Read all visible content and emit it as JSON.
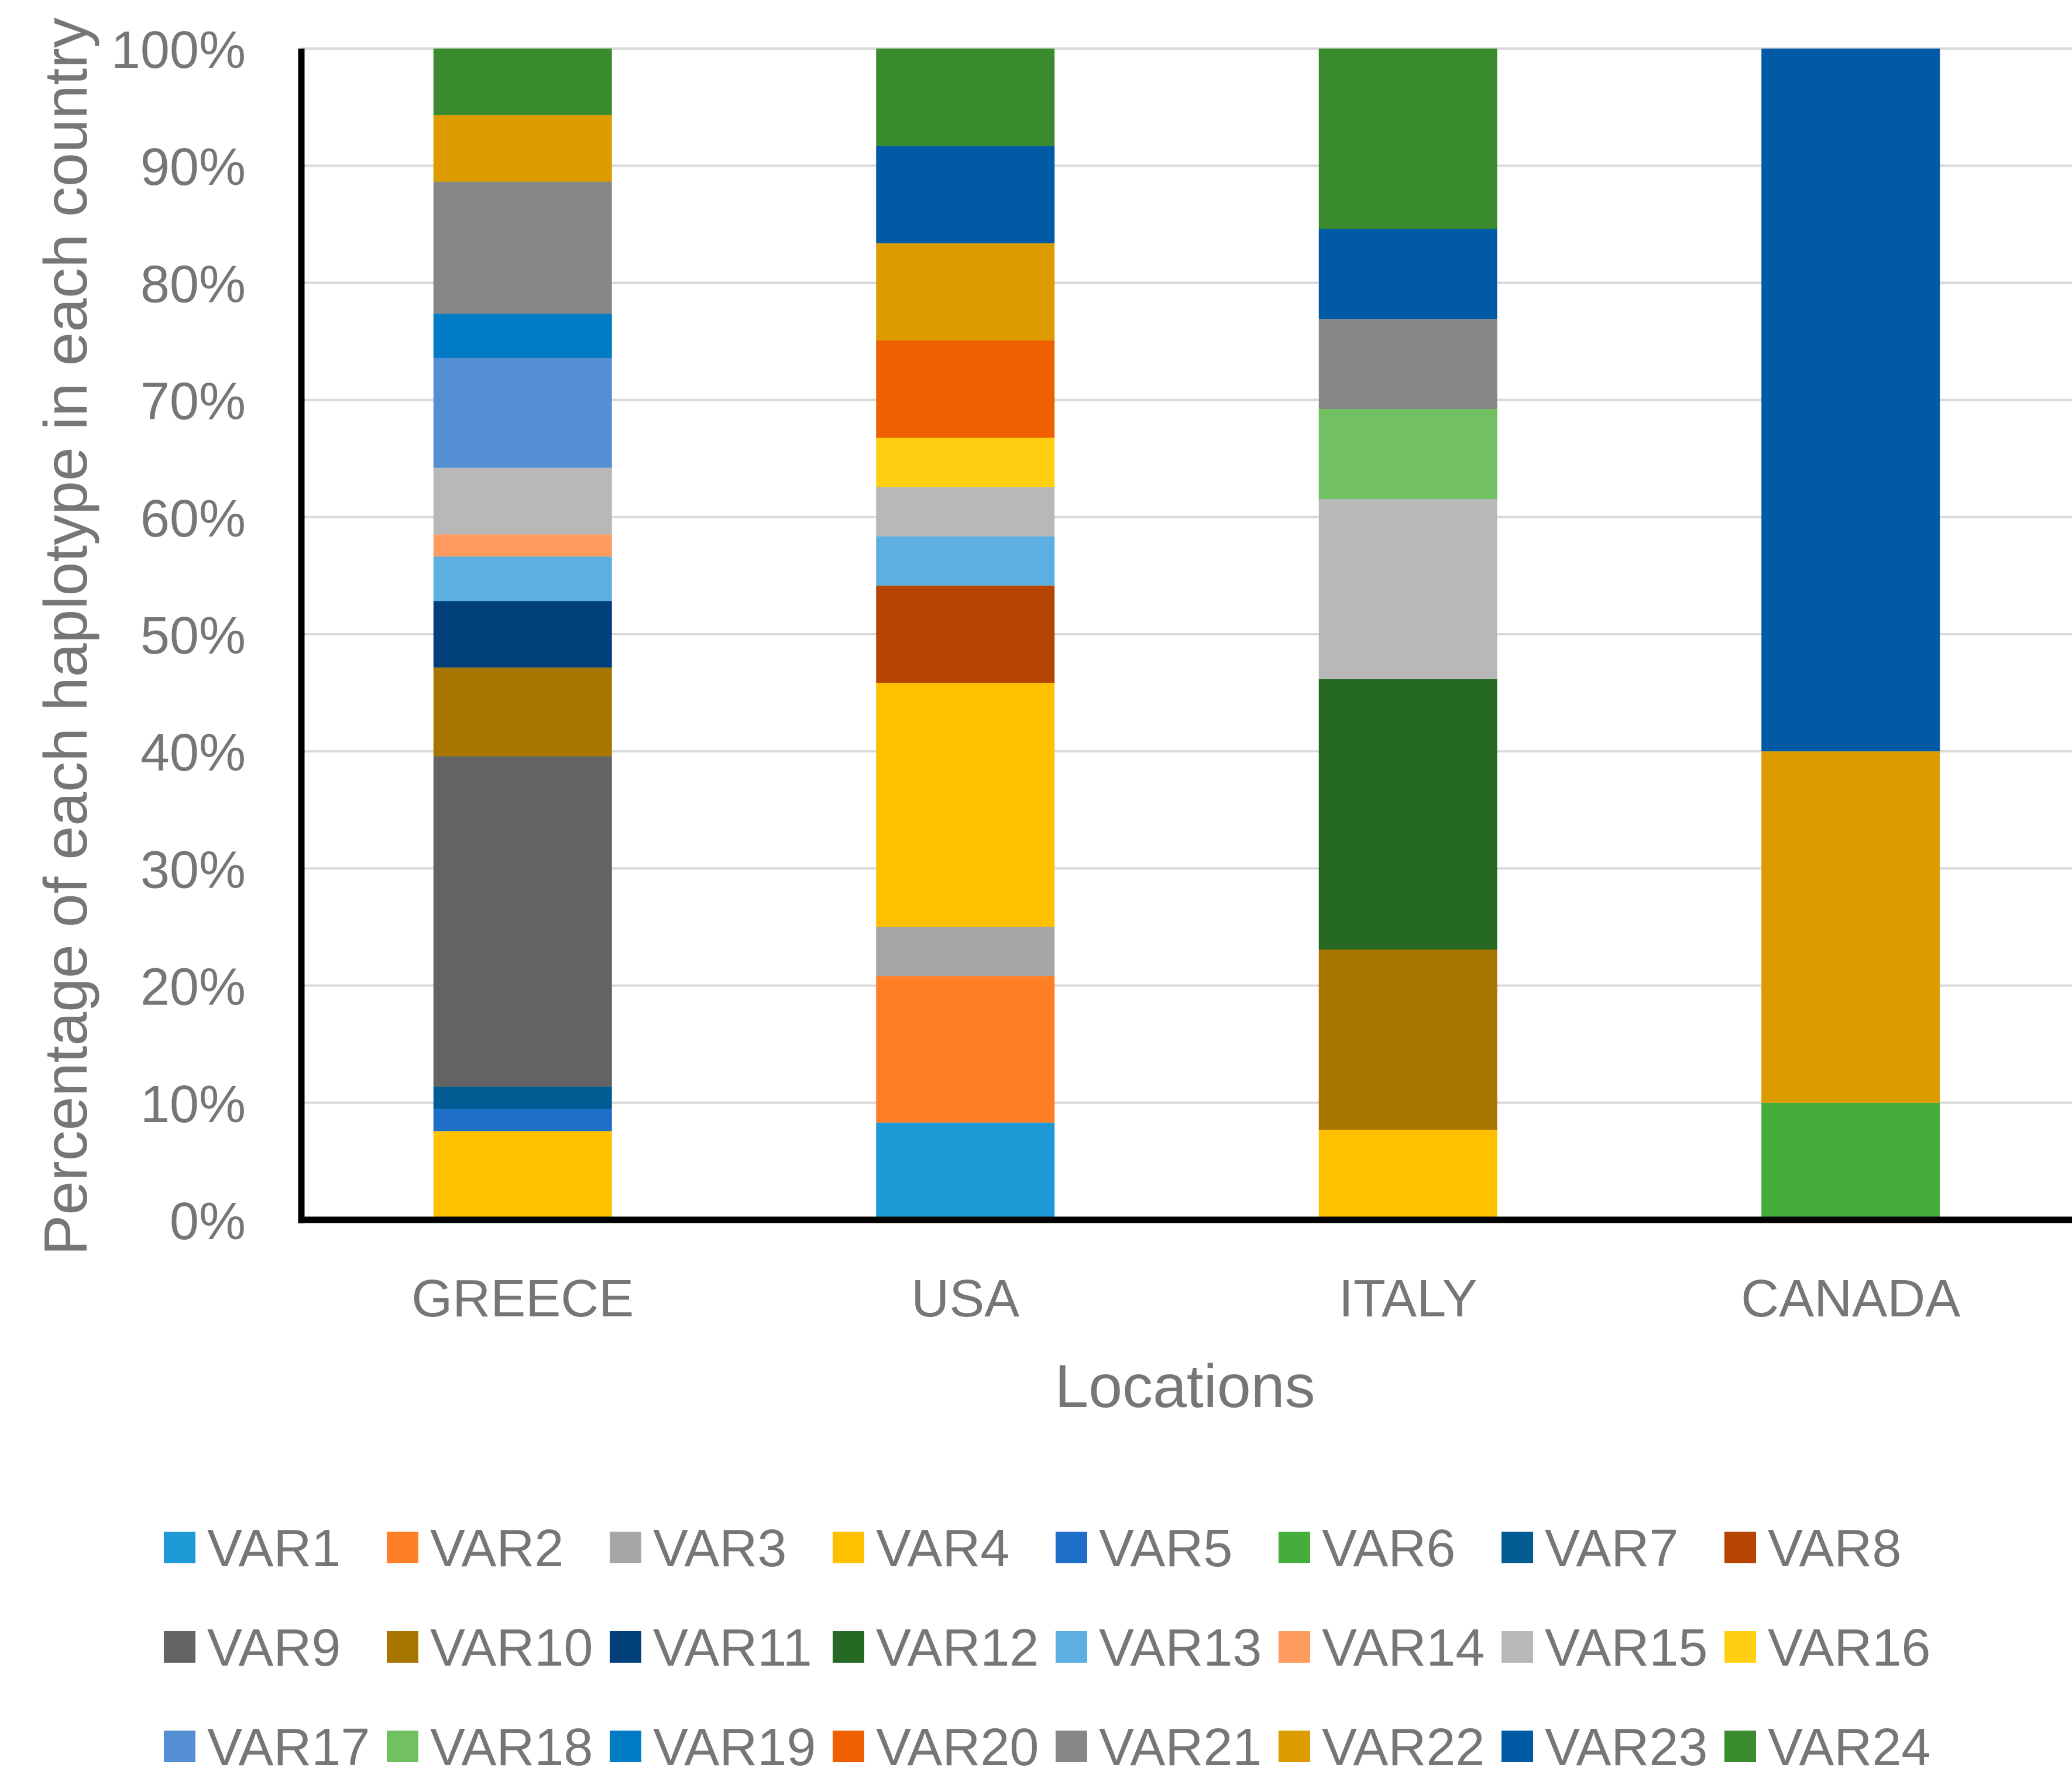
{
  "chart_data": {
    "type": "stacked-bar-100",
    "title": "",
    "xlabel": "Locations",
    "ylabel": "Percentage of each haplotype in each country",
    "ylim": [
      0,
      100
    ],
    "y_tick_labels": [
      "0%",
      "10%",
      "20%",
      "30%",
      "40%",
      "50%",
      "60%",
      "70%",
      "80%",
      "90%",
      "100%"
    ],
    "grid": true,
    "legend_position": "bottom",
    "categories": [
      "GREECE",
      "USA",
      "ITALY",
      "CANADA"
    ],
    "series": [
      {
        "name": "VAR1",
        "color": "#1E9AD6",
        "values": [
          0,
          8.3,
          0,
          0
        ]
      },
      {
        "name": "VAR2",
        "color": "#FF7F27",
        "values": [
          0,
          12.5,
          0,
          0
        ]
      },
      {
        "name": "VAR3",
        "color": "#A6A6A6",
        "values": [
          0,
          4.2,
          0,
          0
        ]
      },
      {
        "name": "VAR4",
        "color": "#FFC000",
        "values": [
          7.6,
          20.8,
          7.7,
          0
        ]
      },
      {
        "name": "VAR5",
        "color": "#1F6FC9",
        "values": [
          1.9,
          0,
          0,
          0
        ]
      },
      {
        "name": "VAR6",
        "color": "#44AD3B",
        "values": [
          0,
          0,
          0,
          10
        ]
      },
      {
        "name": "VAR7",
        "color": "#015C94",
        "values": [
          1.9,
          0,
          0,
          0
        ]
      },
      {
        "name": "VAR8",
        "color": "#B44400",
        "values": [
          0,
          8.3,
          0,
          0
        ]
      },
      {
        "name": "VAR9",
        "color": "#636363",
        "values": [
          28.3,
          0,
          0,
          0
        ]
      },
      {
        "name": "VAR10",
        "color": "#A87500",
        "values": [
          7.6,
          0,
          15.4,
          0
        ]
      },
      {
        "name": "VAR11",
        "color": "#003F7A",
        "values": [
          5.7,
          0,
          0,
          0
        ]
      },
      {
        "name": "VAR12",
        "color": "#256924",
        "values": [
          0,
          0,
          23.1,
          0
        ]
      },
      {
        "name": "VAR13",
        "color": "#5DAFE1",
        "values": [
          3.8,
          4.2,
          0,
          0
        ]
      },
      {
        "name": "VAR14",
        "color": "#FF9B5E",
        "values": [
          1.9,
          0,
          0,
          0
        ]
      },
      {
        "name": "VAR15",
        "color": "#B8B8B8",
        "values": [
          5.7,
          4.2,
          15.4,
          0
        ]
      },
      {
        "name": "VAR16",
        "color": "#FFD012",
        "values": [
          0,
          4.2,
          0,
          0
        ]
      },
      {
        "name": "VAR17",
        "color": "#558FD3",
        "values": [
          9.4,
          0,
          0,
          0
        ]
      },
      {
        "name": "VAR18",
        "color": "#71C163",
        "values": [
          0,
          0,
          7.7,
          0
        ]
      },
      {
        "name": "VAR19",
        "color": "#017CC4",
        "values": [
          3.8,
          0,
          0,
          0
        ]
      },
      {
        "name": "VAR20",
        "color": "#EF6000",
        "values": [
          0,
          8.3,
          0,
          0
        ]
      },
      {
        "name": "VAR21",
        "color": "#878787",
        "values": [
          11.3,
          0,
          7.7,
          0
        ]
      },
      {
        "name": "VAR22",
        "color": "#DC9C00",
        "values": [
          5.7,
          8.3,
          0,
          30
        ]
      },
      {
        "name": "VAR23",
        "color": "#015AA6",
        "values": [
          0,
          8.3,
          7.7,
          60
        ]
      },
      {
        "name": "VAR24",
        "color": "#3A8A2E",
        "values": [
          5.7,
          8.3,
          15.4,
          0
        ]
      }
    ]
  }
}
